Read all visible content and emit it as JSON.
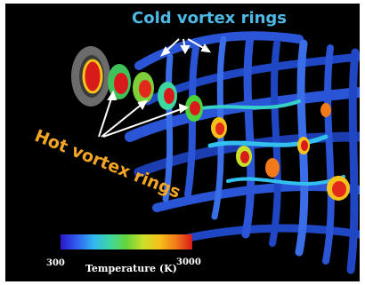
{
  "annotations": {
    "cold_label": "Cold vortex rings",
    "hot_label": "Hot vortex rings"
  },
  "colorbar": {
    "min_label": "300",
    "max_label": "3000",
    "title": "Temperature (K)",
    "colors": [
      "#2c17c8",
      "#2f5ff0",
      "#32b6f2",
      "#3fd7a0",
      "#65d43c",
      "#c9e02a",
      "#f6c21a",
      "#f17a1b",
      "#d81a1a"
    ]
  },
  "colors": {
    "background": "#000000",
    "cold": "#2a55d6",
    "hot": "#d81a1a",
    "annotation_cold": "#4fb9e6",
    "annotation_hot": "#f5a623"
  }
}
